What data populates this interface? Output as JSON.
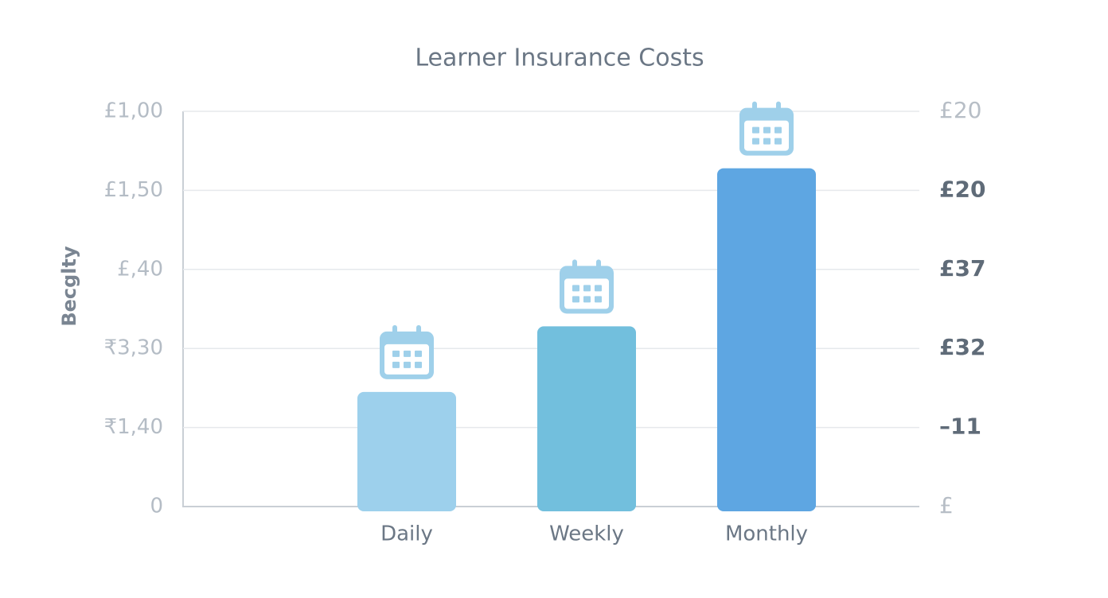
{
  "chart_data": {
    "type": "bar",
    "title": "Learner Insurance Costs",
    "y_label": "Becglty",
    "categories": [
      "Daily",
      "Weekly",
      "Monthly"
    ],
    "values": [
      1.45,
      2.28,
      4.28
    ],
    "colors": [
      "#9dd0ec",
      "#72bfdd",
      "#5ea6e2"
    ],
    "ylim": [
      0,
      5
    ],
    "yticks": [
      {
        "value": 0,
        "label": "0"
      },
      {
        "value": 1,
        "label": "₹1,40"
      },
      {
        "value": 2,
        "label": "₹3,30"
      },
      {
        "value": 3,
        "label": "£,40"
      },
      {
        "value": 4,
        "label": "£1,50"
      },
      {
        "value": 5,
        "label": "£1,00"
      }
    ],
    "y2lim": [
      0,
      5
    ],
    "y2ticks": [
      {
        "value": 0,
        "label": "£"
      },
      {
        "value": 1,
        "label": "–11"
      },
      {
        "value": 2,
        "label": "£32"
      },
      {
        "value": 3,
        "label": "£37"
      },
      {
        "value": 4,
        "label": "£20"
      },
      {
        "value": 5,
        "label": "£20"
      }
    ],
    "grid": true
  }
}
